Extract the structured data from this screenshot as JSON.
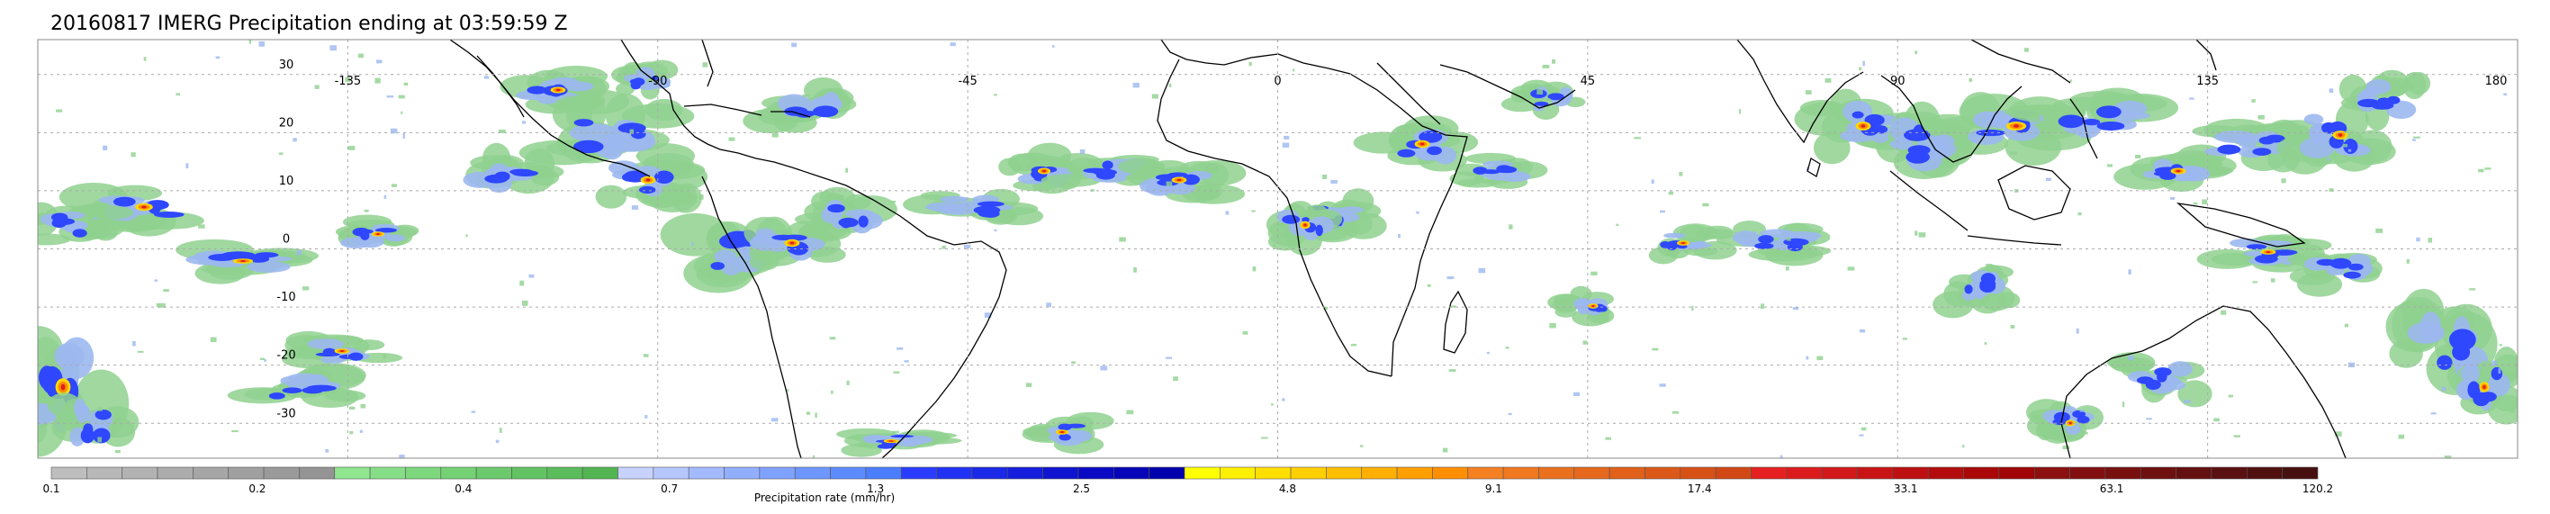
{
  "title": "20160817 IMERG Precipitation ending at 03:59:59 Z",
  "map": {
    "lat_labels": [
      "30",
      "20",
      "10",
      "0",
      "-10",
      "-20",
      "-30"
    ],
    "lat_values": [
      30,
      20,
      10,
      0,
      -10,
      -20,
      -30
    ],
    "lon_labels": [
      "-135",
      "-90",
      "-45",
      "0",
      "45",
      "90",
      "135",
      "180"
    ],
    "lon_values": [
      -135,
      -90,
      -45,
      0,
      45,
      90,
      135,
      180
    ],
    "lon_range": [
      -180,
      180
    ],
    "lat_range": [
      -36,
      36
    ],
    "grid": "dotted",
    "coastline_color": "#000000"
  },
  "colorbar": {
    "label": "Precipitation rate (mm/hr)",
    "tick_labels": [
      "0.1",
      "0.2",
      "0.4",
      "0.7",
      "1.3",
      "2.5",
      "4.8",
      "9.1",
      "17.4",
      "33.1",
      "63.1",
      "120.2"
    ],
    "colors": [
      "#bebebe",
      "#b8b8b8",
      "#b2b2b2",
      "#acacac",
      "#a6a6a6",
      "#a0a0a0",
      "#9a9a9a",
      "#949494",
      "#8fe68f",
      "#86df86",
      "#7dd87d",
      "#74d174",
      "#6bca6b",
      "#62c362",
      "#5abc5a",
      "#52b552",
      "#c8d2ff",
      "#b6c6ff",
      "#a4baff",
      "#92aeff",
      "#80a2ff",
      "#6e96ff",
      "#5c8aff",
      "#4a7eff",
      "#2a3cff",
      "#2232f4",
      "#1a28e8",
      "#141edc",
      "#0e14d0",
      "#0a0ac4",
      "#0606b8",
      "#0000ac",
      "#ffff00",
      "#ffef00",
      "#ffdf00",
      "#ffcf00",
      "#ffbf00",
      "#ffaf00",
      "#ff9f00",
      "#ff8f00",
      "#f58022",
      "#f07820",
      "#eb701e",
      "#e6681c",
      "#e1601a",
      "#dc5818",
      "#d75016",
      "#d24814",
      "#e62020",
      "#dc1c1c",
      "#d21818",
      "#c81414",
      "#be1010",
      "#b40c0c",
      "#aa0808",
      "#a00404",
      "#8c1010",
      "#821010",
      "#781010",
      "#6e1010",
      "#641010",
      "#5a1010",
      "#501010",
      "#461010"
    ]
  },
  "rain_colors": {
    "light": "#8fd18f",
    "lightblue": "#9cb8f0",
    "blue": "#2e47ff",
    "darkblue": "#0a10c8",
    "yellow": "#ffd700",
    "orange": "#ff8c00",
    "red": "#e02020",
    "maroon": "#7a1010"
  }
}
